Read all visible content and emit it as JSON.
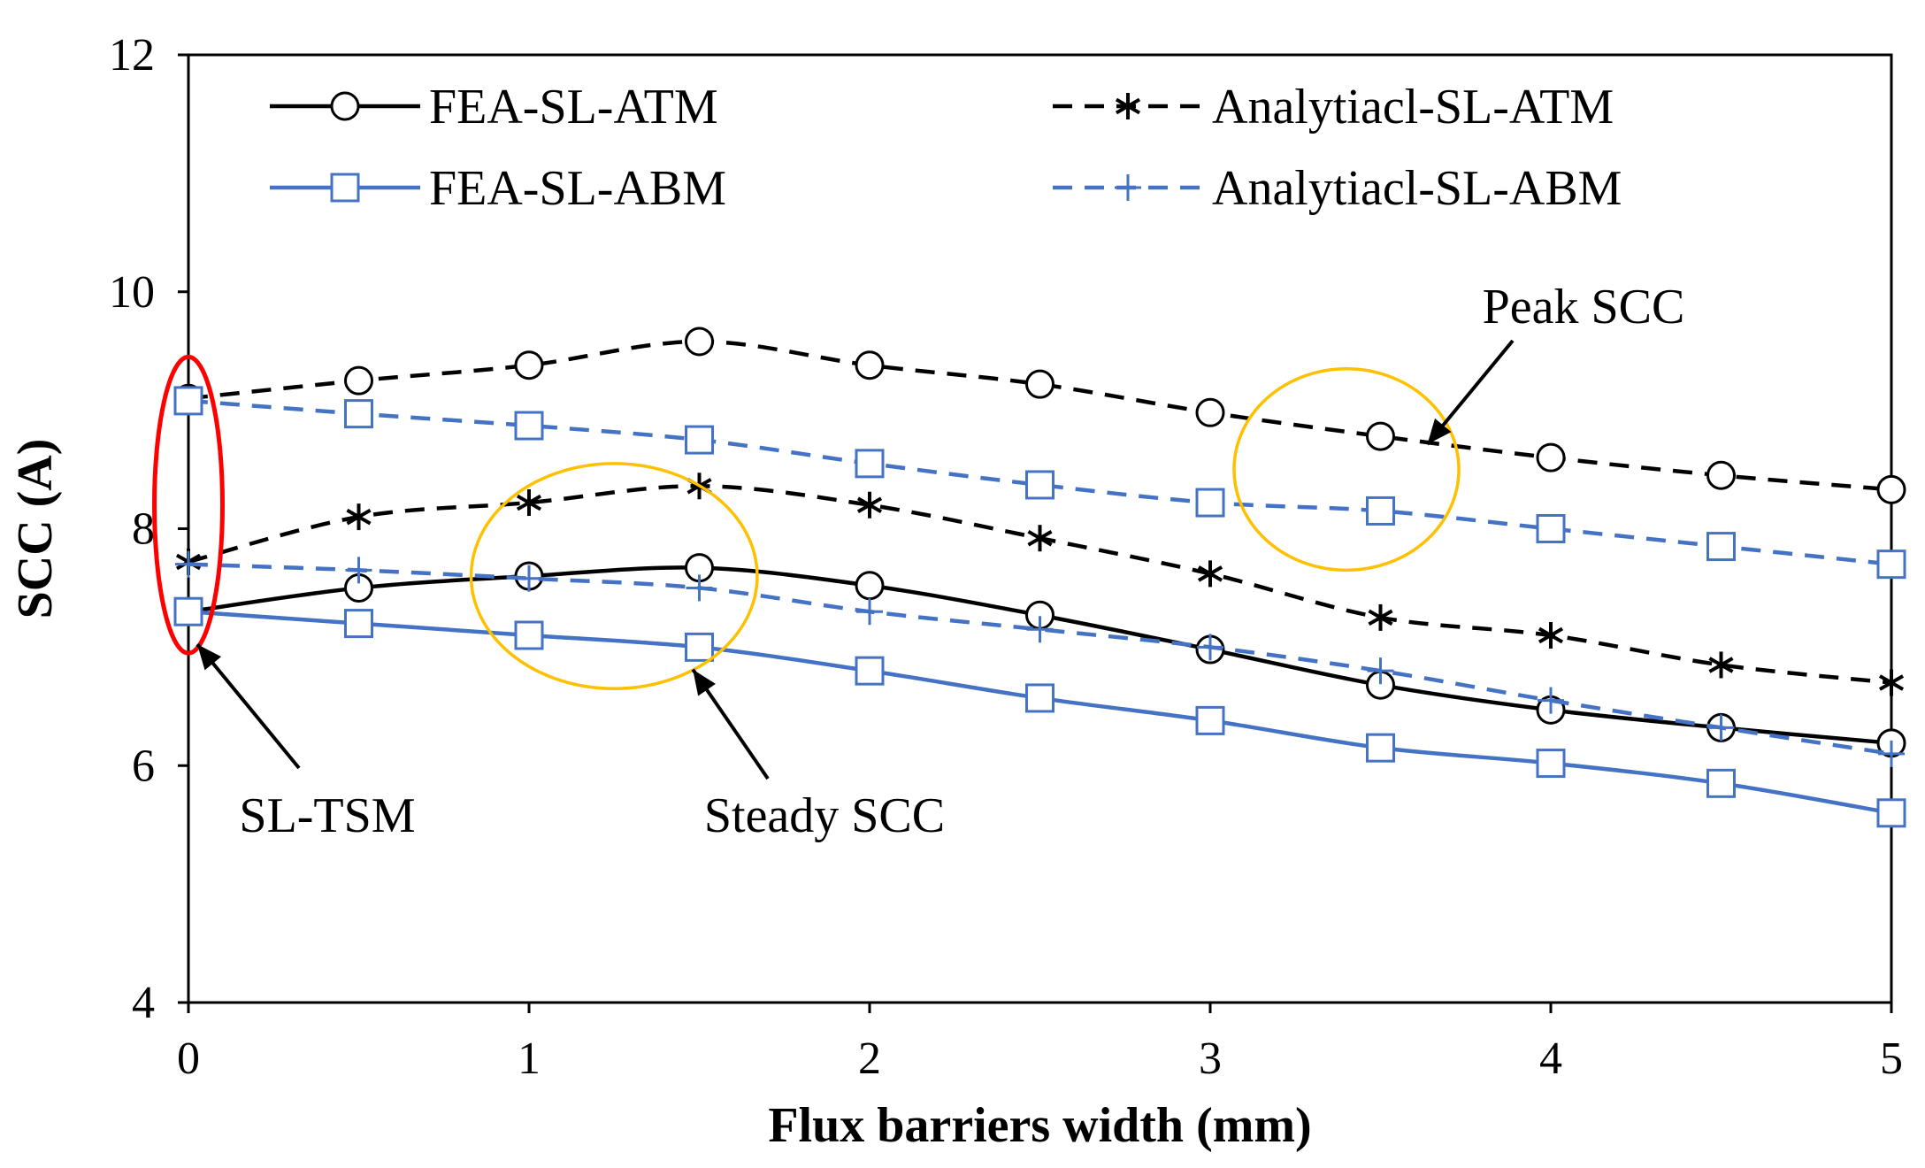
{
  "chart_data": {
    "type": "line",
    "title": "",
    "xlabel": "Flux barriers width (mm)",
    "ylabel": "SCC (A)",
    "xlim": [
      0,
      5
    ],
    "ylim": [
      4,
      12
    ],
    "xticks": [
      0,
      1,
      2,
      3,
      4,
      5
    ],
    "yticks": [
      4,
      6,
      8,
      10,
      12
    ],
    "grid": false,
    "legend_position": "top",
    "series_peak_fea_atm": {
      "x": [
        0,
        0.5,
        1,
        1.5,
        2,
        2.5,
        3,
        3.5,
        4,
        4.5,
        5
      ],
      "values": [
        9.1,
        9.25,
        9.38,
        9.58,
        9.38,
        9.22,
        8.98,
        8.78,
        8.6,
        8.45,
        8.33
      ]
    },
    "series": [
      {
        "name": "FEA-SL-ATM",
        "color": "#000000",
        "line": "solid",
        "marker": "circle",
        "x": [
          0,
          0.5,
          1,
          1.5,
          2,
          2.5,
          3,
          3.5,
          4,
          4.5,
          5
        ],
        "values": [
          7.3,
          7.5,
          7.6,
          7.67,
          7.52,
          7.27,
          6.98,
          6.68,
          6.47,
          6.32,
          6.19
        ]
      },
      {
        "name": "Analytiacl-SL-ATM",
        "color": "#000000",
        "line": "dashed",
        "marker": "asterisk",
        "x": [
          0,
          0.5,
          1,
          1.5,
          2,
          2.5,
          3,
          3.5,
          4,
          4.5,
          5
        ],
        "values": [
          7.72,
          8.1,
          8.22,
          8.36,
          8.2,
          7.92,
          7.62,
          7.25,
          7.1,
          6.85,
          6.7
        ]
      },
      {
        "name": "FEA-SL-ABM",
        "color": "#4472C4",
        "line": "solid",
        "marker": "square",
        "x": [
          0,
          0.5,
          1,
          1.5,
          2,
          2.5,
          3,
          3.5,
          4,
          4.5,
          5
        ],
        "values": [
          7.3,
          7.2,
          7.1,
          7.0,
          6.8,
          6.57,
          6.38,
          6.15,
          6.02,
          5.85,
          5.6
        ]
      },
      {
        "name": "Analytiacl-SL-ABM",
        "color": "#4472C4",
        "line": "dashed",
        "marker": "plus",
        "x": [
          0,
          0.5,
          1,
          1.5,
          2,
          2.5,
          3,
          3.5,
          4,
          4.5,
          5
        ],
        "values": [
          7.7,
          7.65,
          7.58,
          7.5,
          7.3,
          7.15,
          7.0,
          6.8,
          6.55,
          6.32,
          6.1
        ]
      },
      {
        "name": "",
        "color": "#000000",
        "line": "dashed",
        "marker": "circle",
        "x": [
          0,
          0.5,
          1,
          1.5,
          2,
          2.5,
          3,
          3.5,
          4,
          4.5,
          5
        ],
        "values": [
          9.1,
          9.25,
          9.38,
          9.58,
          9.38,
          9.22,
          8.98,
          8.78,
          8.6,
          8.45,
          8.33
        ]
      },
      {
        "name": "",
        "color": "#4472C4",
        "line": "dashed",
        "marker": "square",
        "x": [
          0,
          0.5,
          1,
          1.5,
          2,
          2.5,
          3,
          3.5,
          4,
          4.5,
          5
        ],
        "values": [
          9.08,
          8.97,
          8.87,
          8.75,
          8.55,
          8.37,
          8.22,
          8.15,
          8.0,
          7.85,
          7.7
        ]
      }
    ],
    "annotations": [
      {
        "text": "SL-TSM",
        "ellipse_color": "#FF0000",
        "center": [
          0.0,
          8.2
        ],
        "radius": [
          0.1,
          1.25
        ]
      },
      {
        "text": "Steady SCC",
        "ellipse_color": "#FFC000",
        "center": [
          1.25,
          7.6
        ],
        "radius": [
          0.42,
          0.95
        ]
      },
      {
        "text": "Peak SCC",
        "ellipse_color": "#FFC000",
        "center": [
          3.4,
          8.5
        ],
        "radius": [
          0.33,
          0.85
        ]
      }
    ]
  }
}
